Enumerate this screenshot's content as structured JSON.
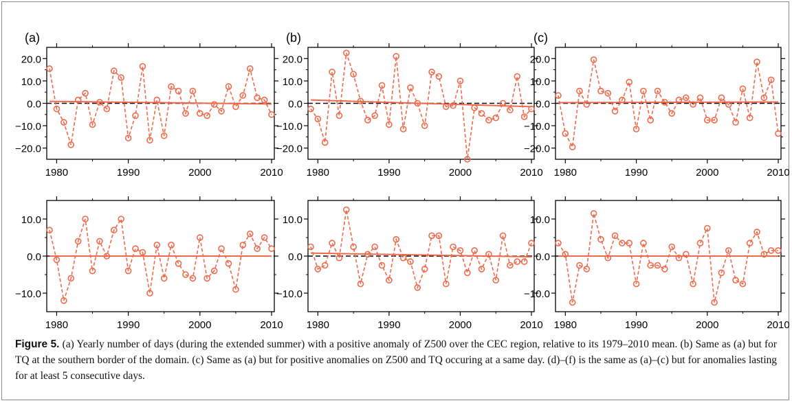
{
  "colors": {
    "series": "#f0694a",
    "mean_line": "#000000",
    "axis": "#000000"
  },
  "chart_data": [
    {
      "type": "line",
      "panel_label": "(a)",
      "xlim": [
        1979,
        2010
      ],
      "ylim": [
        -25,
        25
      ],
      "xticks": [
        1980,
        1990,
        2000,
        2010
      ],
      "yticks": [
        20,
        10,
        0,
        -10,
        -20
      ],
      "ytick_labels": [
        "20.0",
        "10.0",
        "0.0",
        "−10.0",
        "−20.0"
      ],
      "x": [
        1979,
        1980,
        1981,
        1982,
        1983,
        1984,
        1985,
        1986,
        1987,
        1988,
        1989,
        1990,
        1991,
        1992,
        1993,
        1994,
        1995,
        1996,
        1997,
        1998,
        1999,
        2000,
        2001,
        2002,
        2003,
        2004,
        2005,
        2006,
        2007,
        2008,
        2009,
        2010
      ],
      "values": [
        15.5,
        -2.5,
        -8.5,
        -18.5,
        1.5,
        4.5,
        -9.5,
        0.5,
        -2.5,
        14.5,
        11.5,
        -15.5,
        -5.5,
        16.5,
        -16.5,
        1.5,
        -14.5,
        7.5,
        5.5,
        -4.5,
        5.5,
        -4.5,
        -5.5,
        -0.5,
        -3.5,
        7.5,
        -1.5,
        3.5,
        15.5,
        2.5,
        1.5,
        -5.0
      ],
      "trend": [
        0.9,
        -0.3
      ],
      "dashed_mean": 0.0
    },
    {
      "type": "line",
      "panel_label": "(b)",
      "xlim": [
        1979,
        2010
      ],
      "ylim": [
        -25,
        25
      ],
      "xticks": [
        1980,
        1990,
        2000,
        2010
      ],
      "yticks": [
        20,
        10,
        0,
        -10,
        -20
      ],
      "ytick_labels": [
        "20.0",
        "10.0",
        "0.0",
        "−10.0",
        "−20.0"
      ],
      "x": [
        1979,
        1980,
        1981,
        1982,
        1983,
        1984,
        1985,
        1986,
        1987,
        1988,
        1989,
        1990,
        1991,
        1992,
        1993,
        1994,
        1995,
        1996,
        1997,
        1998,
        1999,
        2000,
        2001,
        2002,
        2003,
        2004,
        2005,
        2006,
        2007,
        2008,
        2009,
        2010
      ],
      "values": [
        -2.5,
        -7.0,
        -17.5,
        14.0,
        -5.5,
        22.5,
        13.0,
        1.0,
        -7.5,
        -5.5,
        8.0,
        -9.5,
        21.0,
        -11.5,
        7.0,
        0.0,
        -10.0,
        14.0,
        12.0,
        -1.5,
        -1.0,
        10.0,
        -25.0,
        -2.0,
        -4.5,
        -7.5,
        -6.5,
        0.0,
        -3.0,
        12.0,
        -6.0,
        -2.5
      ],
      "trend": [
        1.5,
        -1.5
      ],
      "dashed_mean": 0.0
    },
    {
      "type": "line",
      "panel_label": "(c)",
      "xlim": [
        1979,
        2010
      ],
      "ylim": [
        -25,
        25
      ],
      "xticks": [
        1980,
        1990,
        2000,
        2010
      ],
      "yticks": [
        20,
        10,
        0,
        -10,
        -20
      ],
      "ytick_labels": [
        "20.0",
        "10.0",
        "0.0",
        "−10.0",
        "−20.0"
      ],
      "x": [
        1979,
        1980,
        1981,
        1982,
        1983,
        1984,
        1985,
        1986,
        1987,
        1988,
        1989,
        1990,
        1991,
        1992,
        1993,
        1994,
        1995,
        1996,
        1997,
        1998,
        1999,
        2000,
        2001,
        2002,
        2003,
        2004,
        2005,
        2006,
        2007,
        2008,
        2009,
        2010
      ],
      "values": [
        3.5,
        -13.5,
        -19.5,
        5.5,
        -0.5,
        19.5,
        5.5,
        4.5,
        -3.5,
        1.5,
        9.5,
        -11.5,
        5.5,
        -7.5,
        5.5,
        0.5,
        -4.5,
        1.5,
        2.5,
        -0.5,
        2.5,
        -7.5,
        -7.5,
        2.5,
        -0.5,
        -8.5,
        6.5,
        -6.5,
        18.5,
        2.5,
        10.5,
        -13.5
      ],
      "trend": [
        0.3,
        0.6
      ],
      "dashed_mean": 0.0
    },
    {
      "type": "line",
      "panel_label": "",
      "xlim": [
        1979,
        2010
      ],
      "ylim": [
        -15,
        15
      ],
      "xticks": [
        1980,
        1990,
        2000,
        2010
      ],
      "yticks": [
        10,
        0,
        -10
      ],
      "ytick_labels": [
        "10.0",
        "0.0",
        "−10.0"
      ],
      "x": [
        1979,
        1980,
        1981,
        1982,
        1983,
        1984,
        1985,
        1986,
        1987,
        1988,
        1989,
        1990,
        1991,
        1992,
        1993,
        1994,
        1995,
        1996,
        1997,
        1998,
        1999,
        2000,
        2001,
        2002,
        2003,
        2004,
        2005,
        2006,
        2007,
        2008,
        2009,
        2010
      ],
      "values": [
        7.0,
        -1.0,
        -12.0,
        -6.0,
        4.0,
        10.0,
        -4.0,
        4.0,
        0.0,
        7.0,
        10.0,
        -4.0,
        2.0,
        1.0,
        -10.0,
        3.0,
        -6.0,
        3.0,
        -2.0,
        -5.0,
        -6.0,
        5.0,
        -6.0,
        -4.0,
        2.0,
        -2.0,
        -9.0,
        3.0,
        6.0,
        2.0,
        5.0,
        2.0
      ],
      "trend": [
        0.0,
        0.0
      ],
      "dashed_mean": 0.0
    },
    {
      "type": "line",
      "panel_label": "",
      "xlim": [
        1979,
        2010
      ],
      "ylim": [
        -15,
        15
      ],
      "xticks": [
        1980,
        1990,
        2000,
        2010
      ],
      "yticks": [
        10,
        0,
        -10
      ],
      "ytick_labels": [
        "10.0",
        "0.0",
        "−10.0"
      ],
      "x": [
        1979,
        1980,
        1981,
        1982,
        1983,
        1984,
        1985,
        1986,
        1987,
        1988,
        1989,
        1990,
        1991,
        1992,
        1993,
        1994,
        1995,
        1996,
        1997,
        1998,
        1999,
        2000,
        2001,
        2002,
        2003,
        2004,
        2005,
        2006,
        2007,
        2008,
        2009,
        2010
      ],
      "values": [
        2.5,
        -3.5,
        -2.5,
        3.5,
        -0.5,
        12.5,
        2.5,
        -7.5,
        0.5,
        2.5,
        -2.5,
        -6.5,
        4.5,
        -0.5,
        -1.5,
        -8.5,
        -3.5,
        5.5,
        5.5,
        -7.5,
        2.5,
        1.5,
        -4.5,
        1.5,
        -3.5,
        0.5,
        -6.5,
        5.5,
        -2.5,
        -1.5,
        -1.5,
        3.5
      ],
      "trend": [
        0.8,
        -0.2
      ],
      "dashed_mean": 0.0
    },
    {
      "type": "line",
      "panel_label": "",
      "xlim": [
        1979,
        2010
      ],
      "ylim": [
        -15,
        15
      ],
      "xticks": [
        1980,
        1990,
        2000,
        2010
      ],
      "yticks": [
        10,
        0,
        -10
      ],
      "ytick_labels": [
        "10.0",
        "0.0",
        "−10.0"
      ],
      "x": [
        1979,
        1980,
        1981,
        1982,
        1983,
        1984,
        1985,
        1986,
        1987,
        1988,
        1989,
        1990,
        1991,
        1992,
        1993,
        1994,
        1995,
        1996,
        1997,
        1998,
        1999,
        2000,
        2001,
        2002,
        2003,
        2004,
        2005,
        2006,
        2007,
        2008,
        2009,
        2010
      ],
      "values": [
        3.5,
        0.5,
        -12.5,
        -2.5,
        -3.5,
        11.5,
        4.5,
        -0.5,
        5.5,
        3.5,
        3.5,
        -7.5,
        3.5,
        -2.5,
        -2.5,
        -3.5,
        2.5,
        -0.5,
        0.5,
        -7.5,
        3.5,
        7.5,
        -12.5,
        -4.5,
        1.5,
        -6.5,
        -7.5,
        3.5,
        6.5,
        0.5,
        1.5,
        1.5
      ],
      "trend": [
        0.0,
        0.0
      ],
      "dashed_mean": 0.0
    }
  ],
  "caption": {
    "lead": "Figure 5.",
    "text": " (a) Yearly number of days (during the extended summer) with a positive anomaly of Z500 over the CEC region, relative to its 1979–2010 mean. (b) Same as (a) but for TQ at the southern border of the domain. (c) Same as (a) but for positive anomalies on Z500 and TQ occuring at a same day. (d)–(f) is the same as (a)–(c) but for anomalies lasting for at least 5 consecutive days."
  }
}
